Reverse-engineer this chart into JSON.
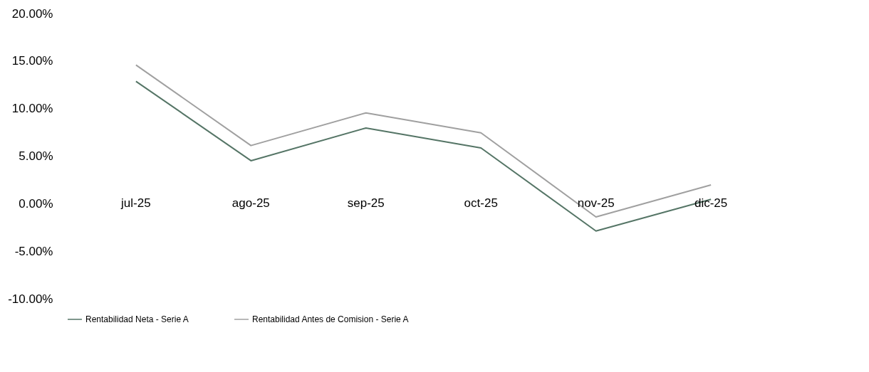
{
  "chart_data": {
    "type": "line",
    "categories": [
      "jul-25",
      "ago-25",
      "sep-25",
      "oct-25",
      "nov-25",
      "dic-25"
    ],
    "series": [
      {
        "name": "Rentabilidad Neta - Serie A",
        "color": "#557566",
        "values": [
          12.87,
          4.52,
          7.96,
          5.86,
          -2.87,
          0.45
        ]
      },
      {
        "name": "Rentabilidad Antes de Comision -  Serie A",
        "color": "#a0a0a0",
        "values": [
          14.59,
          6.11,
          9.55,
          7.45,
          -1.4,
          1.97
        ]
      }
    ],
    "ylim": [
      -10,
      20
    ],
    "yticks": [
      {
        "value": -10,
        "label": "-10.00%"
      },
      {
        "value": -5,
        "label": "-5.00%"
      },
      {
        "value": 0,
        "label": "0.00%"
      },
      {
        "value": 5,
        "label": "5.00%"
      },
      {
        "value": 10,
        "label": "10.00%"
      },
      {
        "value": 15,
        "label": "15.00%"
      },
      {
        "value": 20,
        "label": "20.00%"
      }
    ],
    "grid": false,
    "legend": "bottom",
    "marker": "none",
    "line_style": "solid"
  }
}
